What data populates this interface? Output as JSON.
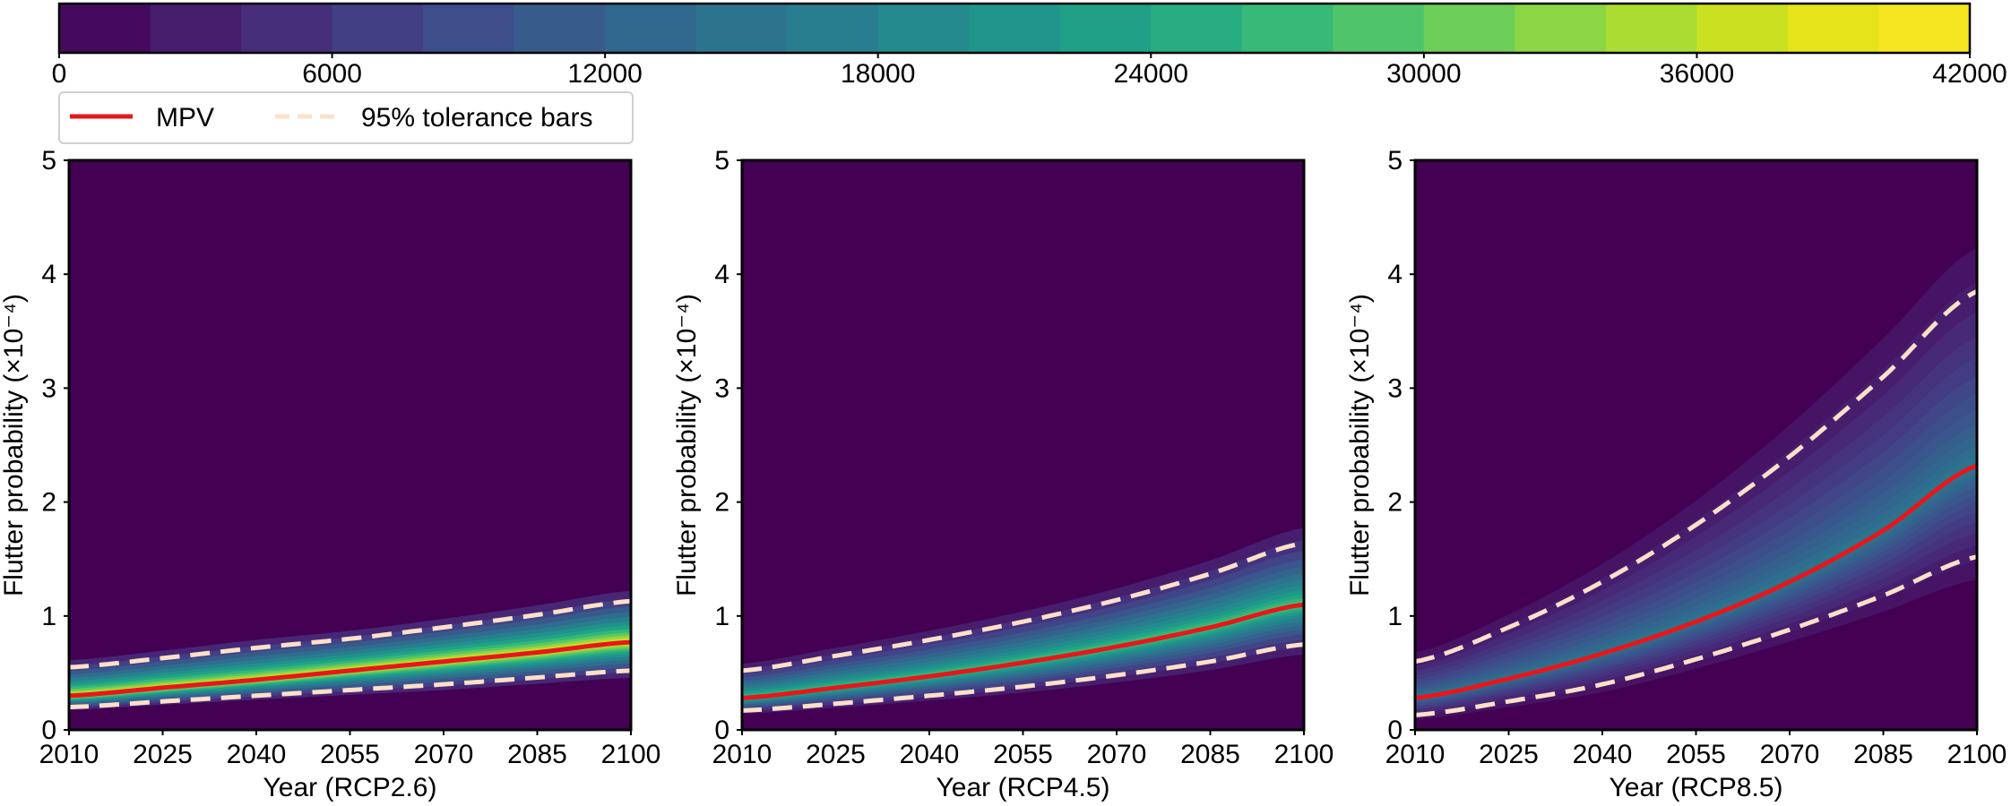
{
  "colorbar": {
    "ticks": [
      "0",
      "6000",
      "12000",
      "18000",
      "24000",
      "30000",
      "36000",
      "42000"
    ],
    "min": 0,
    "max": 42000,
    "levels": 21,
    "colors": [
      "#440154",
      "#471466",
      "#472876",
      "#443983",
      "#3f4a8a",
      "#38598c",
      "#32668e",
      "#2d728e",
      "#287d8e",
      "#24898e",
      "#1f958b",
      "#1fa187",
      "#28ae80",
      "#3bbb75",
      "#55c667",
      "#75d054",
      "#95d840",
      "#b5de2b",
      "#d8e219",
      "#eee51c",
      "#fde725"
    ]
  },
  "legend": {
    "mpv_label": "MPV",
    "tolerance_label": "95% tolerance bars",
    "mpv_color": "#e8161b",
    "tolerance_color": "#fce0c8"
  },
  "chart_data": [
    {
      "type": "line",
      "xlabel": "Year (RCP2.6)",
      "ylabel": "Flutter probability (×10⁻⁴)",
      "xlim": [
        2010,
        2100
      ],
      "ylim": [
        0,
        5
      ],
      "xticks": [
        "2010",
        "2025",
        "2040",
        "2055",
        "2070",
        "2085",
        "2100"
      ],
      "yticks": [
        "0",
        "1",
        "2",
        "3",
        "4",
        "5"
      ],
      "x": [
        2010,
        2025,
        2040,
        2055,
        2070,
        2085,
        2100
      ],
      "series": [
        {
          "name": "MPV",
          "values": [
            0.3,
            0.37,
            0.44,
            0.52,
            0.6,
            0.68,
            0.77
          ]
        },
        {
          "name": "95% tolerance bars",
          "values": [
            0.55,
            0.63,
            0.72,
            0.8,
            0.9,
            1.01,
            1.13
          ]
        },
        {
          "name": "95% tolerance bars",
          "values": [
            0.2,
            0.25,
            0.3,
            0.35,
            0.4,
            0.46,
            0.52
          ]
        }
      ]
    },
    {
      "type": "line",
      "xlabel": "Year (RCP4.5)",
      "ylabel": "Flutter probability (×10⁻⁴)",
      "xlim": [
        2010,
        2100
      ],
      "ylim": [
        0,
        5
      ],
      "xticks": [
        "2010",
        "2025",
        "2040",
        "2055",
        "2070",
        "2085",
        "2100"
      ],
      "yticks": [
        "0",
        "1",
        "2",
        "3",
        "4",
        "5"
      ],
      "x": [
        2010,
        2025,
        2040,
        2055,
        2070,
        2085,
        2100
      ],
      "series": [
        {
          "name": "MPV",
          "values": [
            0.28,
            0.37,
            0.47,
            0.59,
            0.73,
            0.9,
            1.1
          ]
        },
        {
          "name": "95% tolerance bars",
          "values": [
            0.52,
            0.65,
            0.79,
            0.95,
            1.14,
            1.37,
            1.64
          ]
        },
        {
          "name": "95% tolerance bars",
          "values": [
            0.17,
            0.23,
            0.3,
            0.38,
            0.48,
            0.6,
            0.75
          ]
        }
      ]
    },
    {
      "type": "line",
      "xlabel": "Year (RCP8.5)",
      "ylabel": "Flutter probability (×10⁻⁴)",
      "xlim": [
        2010,
        2100
      ],
      "ylim": [
        0,
        5
      ],
      "xticks": [
        "2010",
        "2025",
        "2040",
        "2055",
        "2070",
        "2085",
        "2100"
      ],
      "yticks": [
        "0",
        "1",
        "2",
        "3",
        "4",
        "5"
      ],
      "x": [
        2010,
        2025,
        2040,
        2055,
        2070,
        2085,
        2100
      ],
      "series": [
        {
          "name": "MPV",
          "values": [
            0.28,
            0.45,
            0.67,
            0.95,
            1.3,
            1.75,
            2.32
          ]
        },
        {
          "name": "95% tolerance bars",
          "values": [
            0.6,
            0.9,
            1.3,
            1.8,
            2.4,
            3.1,
            3.85
          ]
        },
        {
          "name": "95% tolerance bars",
          "values": [
            0.13,
            0.25,
            0.4,
            0.62,
            0.88,
            1.18,
            1.52
          ]
        }
      ]
    }
  ]
}
